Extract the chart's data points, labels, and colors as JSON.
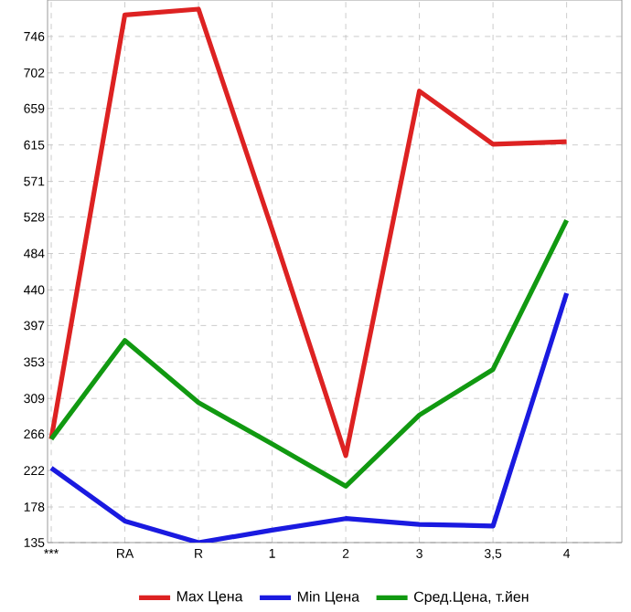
{
  "chart_data": {
    "type": "line",
    "categories": [
      "***",
      "RA",
      "R",
      "1",
      "2",
      "3",
      "3,5",
      "4"
    ],
    "series": [
      {
        "name": "Max Цена",
        "color": "#dd2222",
        "values": [
          260,
          772,
          779,
          513,
          240,
          680,
          616,
          619
        ]
      },
      {
        "name": "Min Цена",
        "color": "#1a1ae0",
        "values": [
          225,
          161,
          135,
          150,
          164,
          157,
          155,
          436
        ]
      },
      {
        "name": "Сред.Цена, т.йен",
        "color": "#119911",
        "values": [
          260,
          379,
          304,
          254,
          203,
          289,
          344,
          524
        ]
      }
    ],
    "ylim": [
      135,
      790
    ],
    "yticks": [
      135,
      178,
      222,
      266,
      309,
      353,
      397,
      440,
      484,
      528,
      571,
      615,
      659,
      702,
      746
    ],
    "grid": true,
    "legend": "bottom",
    "marker": "none",
    "line_style": "solid"
  }
}
